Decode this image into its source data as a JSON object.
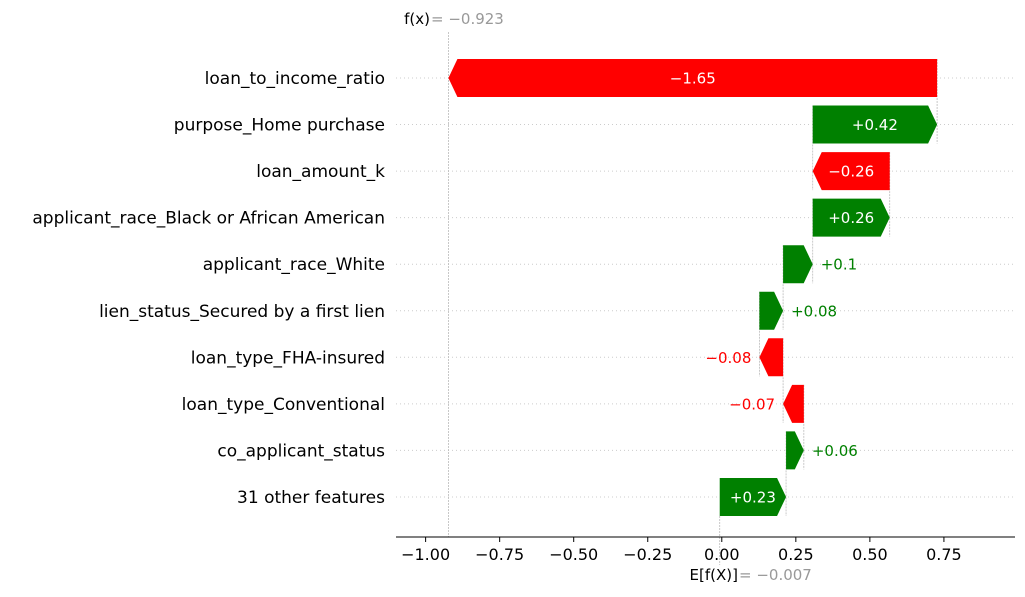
{
  "chart_data": {
    "type": "waterfall",
    "fx_label": "f(x)",
    "fx_value_text": " = −0.923",
    "fx_value": -0.923,
    "ex_label": "E[f(X)]",
    "ex_value_text": " = −0.007",
    "ex_value": -0.007,
    "xlim": [
      -1.1,
      0.99
    ],
    "xticks": [
      -1.0,
      -0.75,
      -0.5,
      -0.25,
      0.0,
      0.25,
      0.5,
      0.75
    ],
    "xtick_labels": [
      "−1.00",
      "−0.75",
      "−0.50",
      "−0.25",
      "0.00",
      "0.25",
      "0.50",
      "0.75"
    ],
    "colors": {
      "positive": "#008000",
      "negative": "#ff0000",
      "reference": "#999999"
    },
    "features": [
      {
        "name": "loan_to_income_ratio",
        "start": 0.727,
        "end": -0.923,
        "label": "−1.65",
        "label_inside": true
      },
      {
        "name": "purpose_Home purchase",
        "start": 0.307,
        "end": 0.727,
        "label": "+0.42",
        "label_inside": true
      },
      {
        "name": "loan_amount_k",
        "start": 0.567,
        "end": 0.307,
        "label": "−0.26",
        "label_inside": true
      },
      {
        "name": "applicant_race_Black or African American",
        "start": 0.307,
        "end": 0.567,
        "label": "+0.26",
        "label_inside": true
      },
      {
        "name": "applicant_race_White",
        "start": 0.207,
        "end": 0.307,
        "label": "+0.1",
        "label_inside": false
      },
      {
        "name": "lien_status_Secured by a first lien",
        "start": 0.127,
        "end": 0.207,
        "label": "+0.08",
        "label_inside": false
      },
      {
        "name": "loan_type_FHA-insured",
        "start": 0.207,
        "end": 0.127,
        "label": "−0.08",
        "label_inside": false
      },
      {
        "name": "loan_type_Conventional",
        "start": 0.277,
        "end": 0.207,
        "label": "−0.07",
        "label_inside": false
      },
      {
        "name": "co_applicant_status",
        "start": 0.217,
        "end": 0.277,
        "label": "+0.06",
        "label_inside": false
      },
      {
        "name": "31 other features",
        "start": -0.007,
        "end": 0.217,
        "label": "+0.23",
        "label_inside": true
      }
    ]
  }
}
